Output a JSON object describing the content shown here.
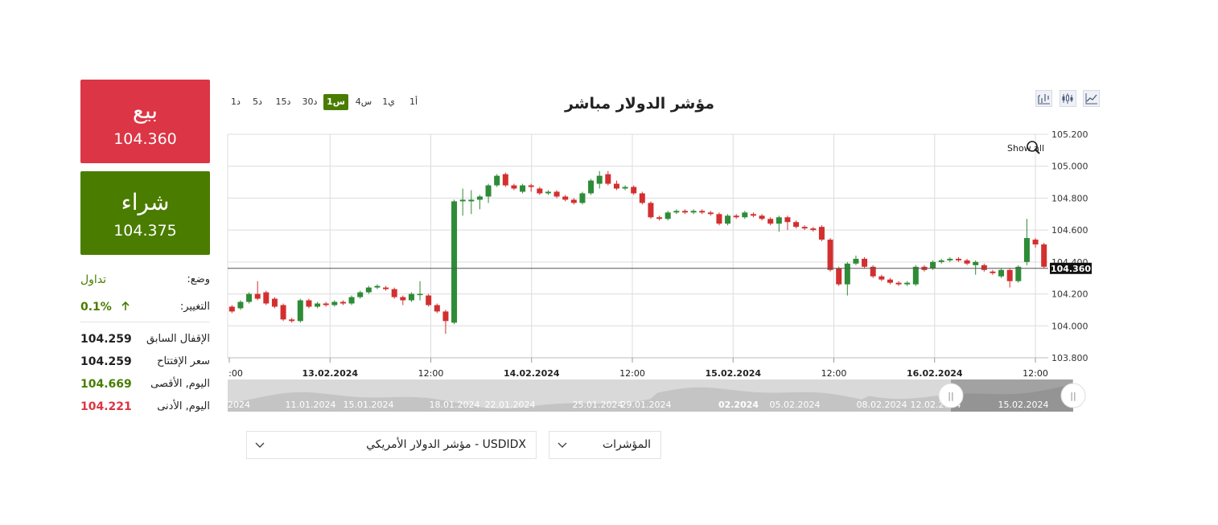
{
  "sell": {
    "label": "بيع",
    "price": "104.360"
  },
  "buy": {
    "label": "شراء",
    "price": "104.375"
  },
  "info": {
    "status_label": "وضع:",
    "status_value": "تداول",
    "change_label": "التغيير:",
    "change_value": "0.1%",
    "change_icon": "arrow-up-icon",
    "rows": [
      {
        "label": "الإقفال السابق",
        "value": "104.259"
      },
      {
        "label": "سعر الإفتتاح",
        "value": "104.259"
      },
      {
        "label": "اليوم, الأقصى",
        "value": "104.669"
      },
      {
        "label": "اليوم, الأدنى",
        "value": "104.221"
      }
    ]
  },
  "title": "مؤشر الدولار مباشر",
  "timeframes": [
    "1أ",
    "1ي",
    "4س",
    "1س",
    "30د",
    "15د",
    "5د",
    "1د"
  ],
  "timeframe_active": "1س",
  "tools": [
    "compare-icon",
    "candlestick-icon",
    "line-chart-icon"
  ],
  "show_all_label": "Show all",
  "current_price_label": "104.360",
  "colors": {
    "up": "#2e8b37",
    "down": "#d32f2f",
    "sell": "#dc3545",
    "buy": "#4a7c00"
  },
  "chart_data": {
    "type": "candlestick",
    "y_ticks": [
      "105.200",
      "105.000",
      "104.800",
      "104.600",
      "104.400",
      "104.200",
      "104.000",
      "103.800"
    ],
    "ylim": [
      103.8,
      105.2
    ],
    "x_ticks": [
      ":00",
      "13.02.2024",
      "12:00",
      "14.02.2024",
      "12:00",
      "15.02.2024",
      "12:00",
      "16.02.2024",
      "12:00"
    ],
    "x_ticks_bold": [
      false,
      true,
      false,
      true,
      false,
      true,
      false,
      true,
      false
    ],
    "current_price": 104.36,
    "candles": [
      [
        104.12,
        104.09,
        104.13,
        104.08
      ],
      [
        104.11,
        104.15,
        104.16,
        104.1
      ],
      [
        104.15,
        104.2,
        104.21,
        104.14
      ],
      [
        104.2,
        104.17,
        104.28,
        104.16
      ],
      [
        104.21,
        104.14,
        104.22,
        104.13
      ],
      [
        104.17,
        104.12,
        104.18,
        104.11
      ],
      [
        104.13,
        104.04,
        104.14,
        104.03
      ],
      [
        104.04,
        104.03,
        104.05,
        104.02
      ],
      [
        104.03,
        104.16,
        104.17,
        104.02
      ],
      [
        104.16,
        104.12,
        104.17,
        104.11
      ],
      [
        104.12,
        104.14,
        104.15,
        104.11
      ],
      [
        104.14,
        104.13,
        104.15,
        104.12
      ],
      [
        104.13,
        104.15,
        104.16,
        104.12
      ],
      [
        104.15,
        104.14,
        104.16,
        104.13
      ],
      [
        104.14,
        104.18,
        104.19,
        104.13
      ],
      [
        104.18,
        104.21,
        104.22,
        104.17
      ],
      [
        104.21,
        104.24,
        104.25,
        104.2
      ],
      [
        104.24,
        104.25,
        104.26,
        104.23
      ],
      [
        104.24,
        104.23,
        104.25,
        104.22
      ],
      [
        104.23,
        104.18,
        104.24,
        104.17
      ],
      [
        104.18,
        104.16,
        104.19,
        104.13
      ],
      [
        104.16,
        104.2,
        104.21,
        104.15
      ],
      [
        104.2,
        104.2,
        104.28,
        104.16
      ],
      [
        104.19,
        104.13,
        104.2,
        104.12
      ],
      [
        104.13,
        104.09,
        104.14,
        104.08
      ],
      [
        104.09,
        104.03,
        104.1,
        103.95
      ],
      [
        104.02,
        104.78,
        104.79,
        104.01
      ],
      [
        104.78,
        104.79,
        104.86,
        104.69
      ],
      [
        104.78,
        104.79,
        104.85,
        104.7
      ],
      [
        104.79,
        104.81,
        104.82,
        104.73
      ],
      [
        104.81,
        104.88,
        104.89,
        104.77
      ],
      [
        104.88,
        104.94,
        104.95,
        104.87
      ],
      [
        104.95,
        104.88,
        104.96,
        104.87
      ],
      [
        104.88,
        104.86,
        104.89,
        104.85
      ],
      [
        104.84,
        104.88,
        104.89,
        104.83
      ],
      [
        104.88,
        104.87,
        104.89,
        104.84
      ],
      [
        104.86,
        104.83,
        104.87,
        104.82
      ],
      [
        104.83,
        104.84,
        104.85,
        104.82
      ],
      [
        104.84,
        104.81,
        104.85,
        104.8
      ],
      [
        104.81,
        104.79,
        104.82,
        104.78
      ],
      [
        104.79,
        104.77,
        104.8,
        104.76
      ],
      [
        104.77,
        104.83,
        104.84,
        104.76
      ],
      [
        104.83,
        104.91,
        104.92,
        104.82
      ],
      [
        104.89,
        104.94,
        104.97,
        104.86
      ],
      [
        104.95,
        104.89,
        104.97,
        104.88
      ],
      [
        104.89,
        104.86,
        104.91,
        104.85
      ],
      [
        104.86,
        104.87,
        104.88,
        104.85
      ],
      [
        104.87,
        104.83,
        104.88,
        104.82
      ],
      [
        104.83,
        104.77,
        104.84,
        104.76
      ],
      [
        104.77,
        104.68,
        104.78,
        104.67
      ],
      [
        104.68,
        104.67,
        104.69,
        104.66
      ],
      [
        104.67,
        104.71,
        104.72,
        104.66
      ],
      [
        104.71,
        104.72,
        104.73,
        104.7
      ],
      [
        104.72,
        104.71,
        104.73,
        104.7
      ],
      [
        104.71,
        104.72,
        104.73,
        104.7
      ],
      [
        104.72,
        104.71,
        104.73,
        104.7
      ],
      [
        104.71,
        104.7,
        104.72,
        104.69
      ],
      [
        104.7,
        104.64,
        104.71,
        104.63
      ],
      [
        104.64,
        104.69,
        104.7,
        104.63
      ],
      [
        104.69,
        104.68,
        104.7,
        104.67
      ],
      [
        104.68,
        104.71,
        104.72,
        104.67
      ],
      [
        104.7,
        104.69,
        104.71,
        104.68
      ],
      [
        104.69,
        104.67,
        104.7,
        104.66
      ],
      [
        104.67,
        104.64,
        104.68,
        104.63
      ],
      [
        104.64,
        104.68,
        104.69,
        104.59
      ],
      [
        104.68,
        104.65,
        104.69,
        104.6
      ],
      [
        104.65,
        104.62,
        104.66,
        104.61
      ],
      [
        104.62,
        104.61,
        104.63,
        104.6
      ],
      [
        104.61,
        104.6,
        104.62,
        104.59
      ],
      [
        104.62,
        104.54,
        104.63,
        104.53
      ],
      [
        104.54,
        104.35,
        104.55,
        104.34
      ],
      [
        104.36,
        104.26,
        104.37,
        104.25
      ],
      [
        104.26,
        104.39,
        104.4,
        104.19
      ],
      [
        104.39,
        104.42,
        104.44,
        104.38
      ],
      [
        104.42,
        104.37,
        104.43,
        104.36
      ],
      [
        104.37,
        104.31,
        104.38,
        104.3
      ],
      [
        104.31,
        104.29,
        104.32,
        104.28
      ],
      [
        104.29,
        104.27,
        104.3,
        104.26
      ],
      [
        104.27,
        104.26,
        104.28,
        104.25
      ],
      [
        104.26,
        104.27,
        104.28,
        104.25
      ],
      [
        104.26,
        104.37,
        104.38,
        104.25
      ],
      [
        104.37,
        104.35,
        104.38,
        104.34
      ],
      [
        104.36,
        104.4,
        104.41,
        104.35
      ],
      [
        104.4,
        104.41,
        104.42,
        104.39
      ],
      [
        104.41,
        104.42,
        104.43,
        104.4
      ],
      [
        104.42,
        104.41,
        104.43,
        104.4
      ],
      [
        104.41,
        104.39,
        104.42,
        104.38
      ],
      [
        104.38,
        104.4,
        104.41,
        104.32
      ],
      [
        104.38,
        104.35,
        104.39,
        104.34
      ],
      [
        104.34,
        104.33,
        104.35,
        104.32
      ],
      [
        104.31,
        104.35,
        104.36,
        104.3
      ],
      [
        104.35,
        104.28,
        104.36,
        104.24
      ],
      [
        104.28,
        104.37,
        104.38,
        104.27
      ],
      [
        104.4,
        104.55,
        104.67,
        104.38
      ],
      [
        104.54,
        104.51,
        104.55,
        104.49
      ],
      [
        104.51,
        104.37,
        104.52,
        104.36
      ]
    ]
  },
  "navigator": {
    "labels": [
      "2024",
      "11.01.2024",
      "15.01.2024",
      "18.01.2024",
      "22.01.2024",
      "25.01.2024",
      "29.01.2024",
      "02.2024",
      "05.02.2024",
      "08.02.2024",
      "12.02.2024",
      "15.02.2024"
    ],
    "handle_glyph": "||"
  },
  "instrument_select": {
    "value": "USDIDX - مؤشر الدولار الأمريكي"
  },
  "indicators_select": {
    "value": "المؤشرات"
  }
}
